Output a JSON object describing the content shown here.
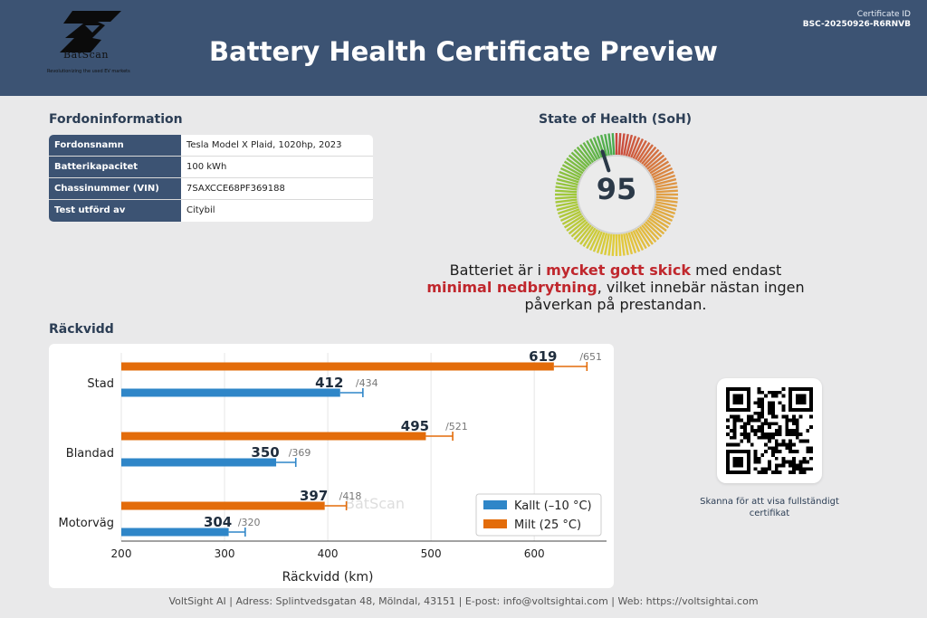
{
  "header": {
    "brand": "BatScan",
    "tagline": "Revolutionizing the used EV markets",
    "title": "Battery Health Certificate Preview",
    "cert_label": "Certificate ID",
    "cert_id": "BSC-20250926-R6RNVB"
  },
  "vehicle": {
    "heading": "Fordoninformation",
    "rows": [
      {
        "key": "Fordonsnamn",
        "value": "Tesla Model X Plaid, 1020hp, 2023"
      },
      {
        "key": "Batterikapacitet",
        "value": "100 kWh"
      },
      {
        "key": "Chassinummer (VIN)",
        "value": "7SAXCCE68PF369188"
      },
      {
        "key": "Test utförd av",
        "value": "Citybil"
      }
    ]
  },
  "soh": {
    "heading": "State of Health (SoH)",
    "value": 95,
    "value_text": "95",
    "description": {
      "part1": "Batteriet är i ",
      "highlight1": "mycket gott skick",
      "part2": " med endast ",
      "highlight2": "minimal nedbrytning",
      "part3": ", vilket innebär nästan ingen påverkan på prestandan."
    }
  },
  "range": {
    "heading": "Räckvidd"
  },
  "chart_data": {
    "type": "bar",
    "orientation": "horizontal",
    "categories": [
      "Stad",
      "Blandad",
      "Motorväg"
    ],
    "series": [
      {
        "name": "Milt (25 °C)",
        "color": "#e36c0a",
        "values": [
          619,
          495,
          397
        ],
        "max": [
          651,
          521,
          418
        ]
      },
      {
        "name": "Kallt (–10 °C)",
        "color": "#2f86c8",
        "values": [
          412,
          350,
          304
        ],
        "max": [
          434,
          369,
          320
        ]
      }
    ],
    "legend": [
      "Kallt (–10 °C)",
      "Milt (25 °C)"
    ],
    "xlabel": "Räckvidd (km)",
    "xlim": [
      200,
      670
    ],
    "xticks": [
      200,
      300,
      400,
      500,
      600
    ],
    "legend_position": "bottom-right",
    "grid": true
  },
  "qr": {
    "caption": "Skanna för att visa fullständigt certifikat"
  },
  "footer": {
    "text": "VoltSight AI | Adress: Splintvedsgatan 48, Mölndal, 43151 | E-post: info@voltsightai.com | Web: https://voltsightai.com"
  }
}
